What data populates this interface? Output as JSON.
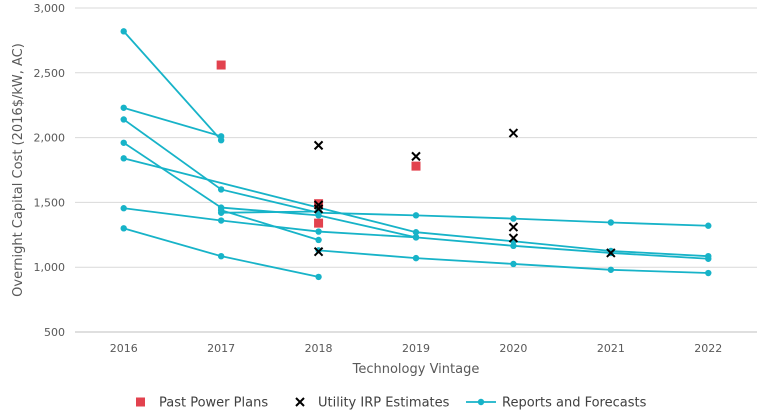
{
  "chart_data": {
    "type": "scatter",
    "xlabel": "Technology Vintage",
    "ylabel": "Overnight Capital Cost (2016$/kW, AC)",
    "x_ticks": [
      "2016",
      "2017",
      "2018",
      "2019",
      "2020",
      "2021",
      "2022"
    ],
    "y_ticks": [
      "500",
      "1,000",
      "1,500",
      "2,000",
      "2,500",
      "3,000"
    ],
    "xlim": [
      2015.5,
      2022.5
    ],
    "ylim": [
      500,
      3000
    ],
    "grid": "horizontal",
    "legend_position": "bottom",
    "colors": {
      "past_power_plans": "#e2424e",
      "utility_irp": "#000000",
      "reports": "#17b3c8",
      "grid": "#d9d9d9",
      "axis": "#bfbfbf"
    },
    "legend": [
      {
        "label": "Past Power Plans",
        "marker": "square",
        "color": "#e2424e"
      },
      {
        "label": "Utility IRP Estimates",
        "marker": "x",
        "color": "#000000"
      },
      {
        "label": "Reports and Forecasts",
        "marker": "line-circle",
        "color": "#17b3c8"
      }
    ],
    "past_power_plans": [
      {
        "x": 2017,
        "y": 2560
      },
      {
        "x": 2018,
        "y": 1490
      },
      {
        "x": 2018,
        "y": 1340
      },
      {
        "x": 2019,
        "y": 1780
      }
    ],
    "utility_irp_estimates": [
      {
        "x": 2018,
        "y": 1940
      },
      {
        "x": 2018,
        "y": 1480
      },
      {
        "x": 2018,
        "y": 1450
      },
      {
        "x": 2018,
        "y": 1120
      },
      {
        "x": 2019,
        "y": 1855
      },
      {
        "x": 2020,
        "y": 2035
      },
      {
        "x": 2020,
        "y": 1310
      },
      {
        "x": 2020,
        "y": 1225
      },
      {
        "x": 2021,
        "y": 1110
      }
    ],
    "reports_and_forecasts": [
      {
        "points": [
          [
            2016,
            2820
          ],
          [
            2017,
            1980
          ]
        ]
      },
      {
        "points": [
          [
            2016,
            2230
          ],
          [
            2017,
            2010
          ]
        ]
      },
      {
        "points": [
          [
            2016,
            2140
          ],
          [
            2017,
            1600
          ],
          [
            2018,
            1420
          ],
          [
            2019,
            1400
          ],
          [
            2020,
            1375
          ],
          [
            2021,
            1345
          ],
          [
            2022,
            1320
          ]
        ]
      },
      {
        "points": [
          [
            2016,
            1960
          ],
          [
            2017,
            1460
          ],
          [
            2018,
            1400
          ],
          [
            2019,
            1230
          ],
          [
            2020,
            1165
          ],
          [
            2021,
            1110
          ],
          [
            2022,
            1065
          ]
        ]
      },
      {
        "points": [
          [
            2016,
            1840
          ],
          [
            2018,
            1460
          ],
          [
            2019,
            1270
          ],
          [
            2020,
            1200
          ],
          [
            2021,
            1125
          ],
          [
            2022,
            1085
          ]
        ]
      },
      {
        "points": [
          [
            2016,
            1455
          ],
          [
            2017,
            1360
          ],
          [
            2018,
            1275
          ],
          [
            2019,
            1230
          ]
        ]
      },
      {
        "points": [
          [
            2017,
            1420
          ],
          [
            2018,
            1430
          ]
        ]
      },
      {
        "points": [
          [
            2017,
            1440
          ],
          [
            2018,
            1210
          ]
        ]
      },
      {
        "points": [
          [
            2018,
            1130
          ],
          [
            2019,
            1070
          ],
          [
            2020,
            1025
          ],
          [
            2021,
            980
          ],
          [
            2022,
            955
          ]
        ]
      },
      {
        "points": [
          [
            2016,
            1300
          ],
          [
            2017,
            1085
          ],
          [
            2018,
            925
          ]
        ]
      }
    ]
  }
}
